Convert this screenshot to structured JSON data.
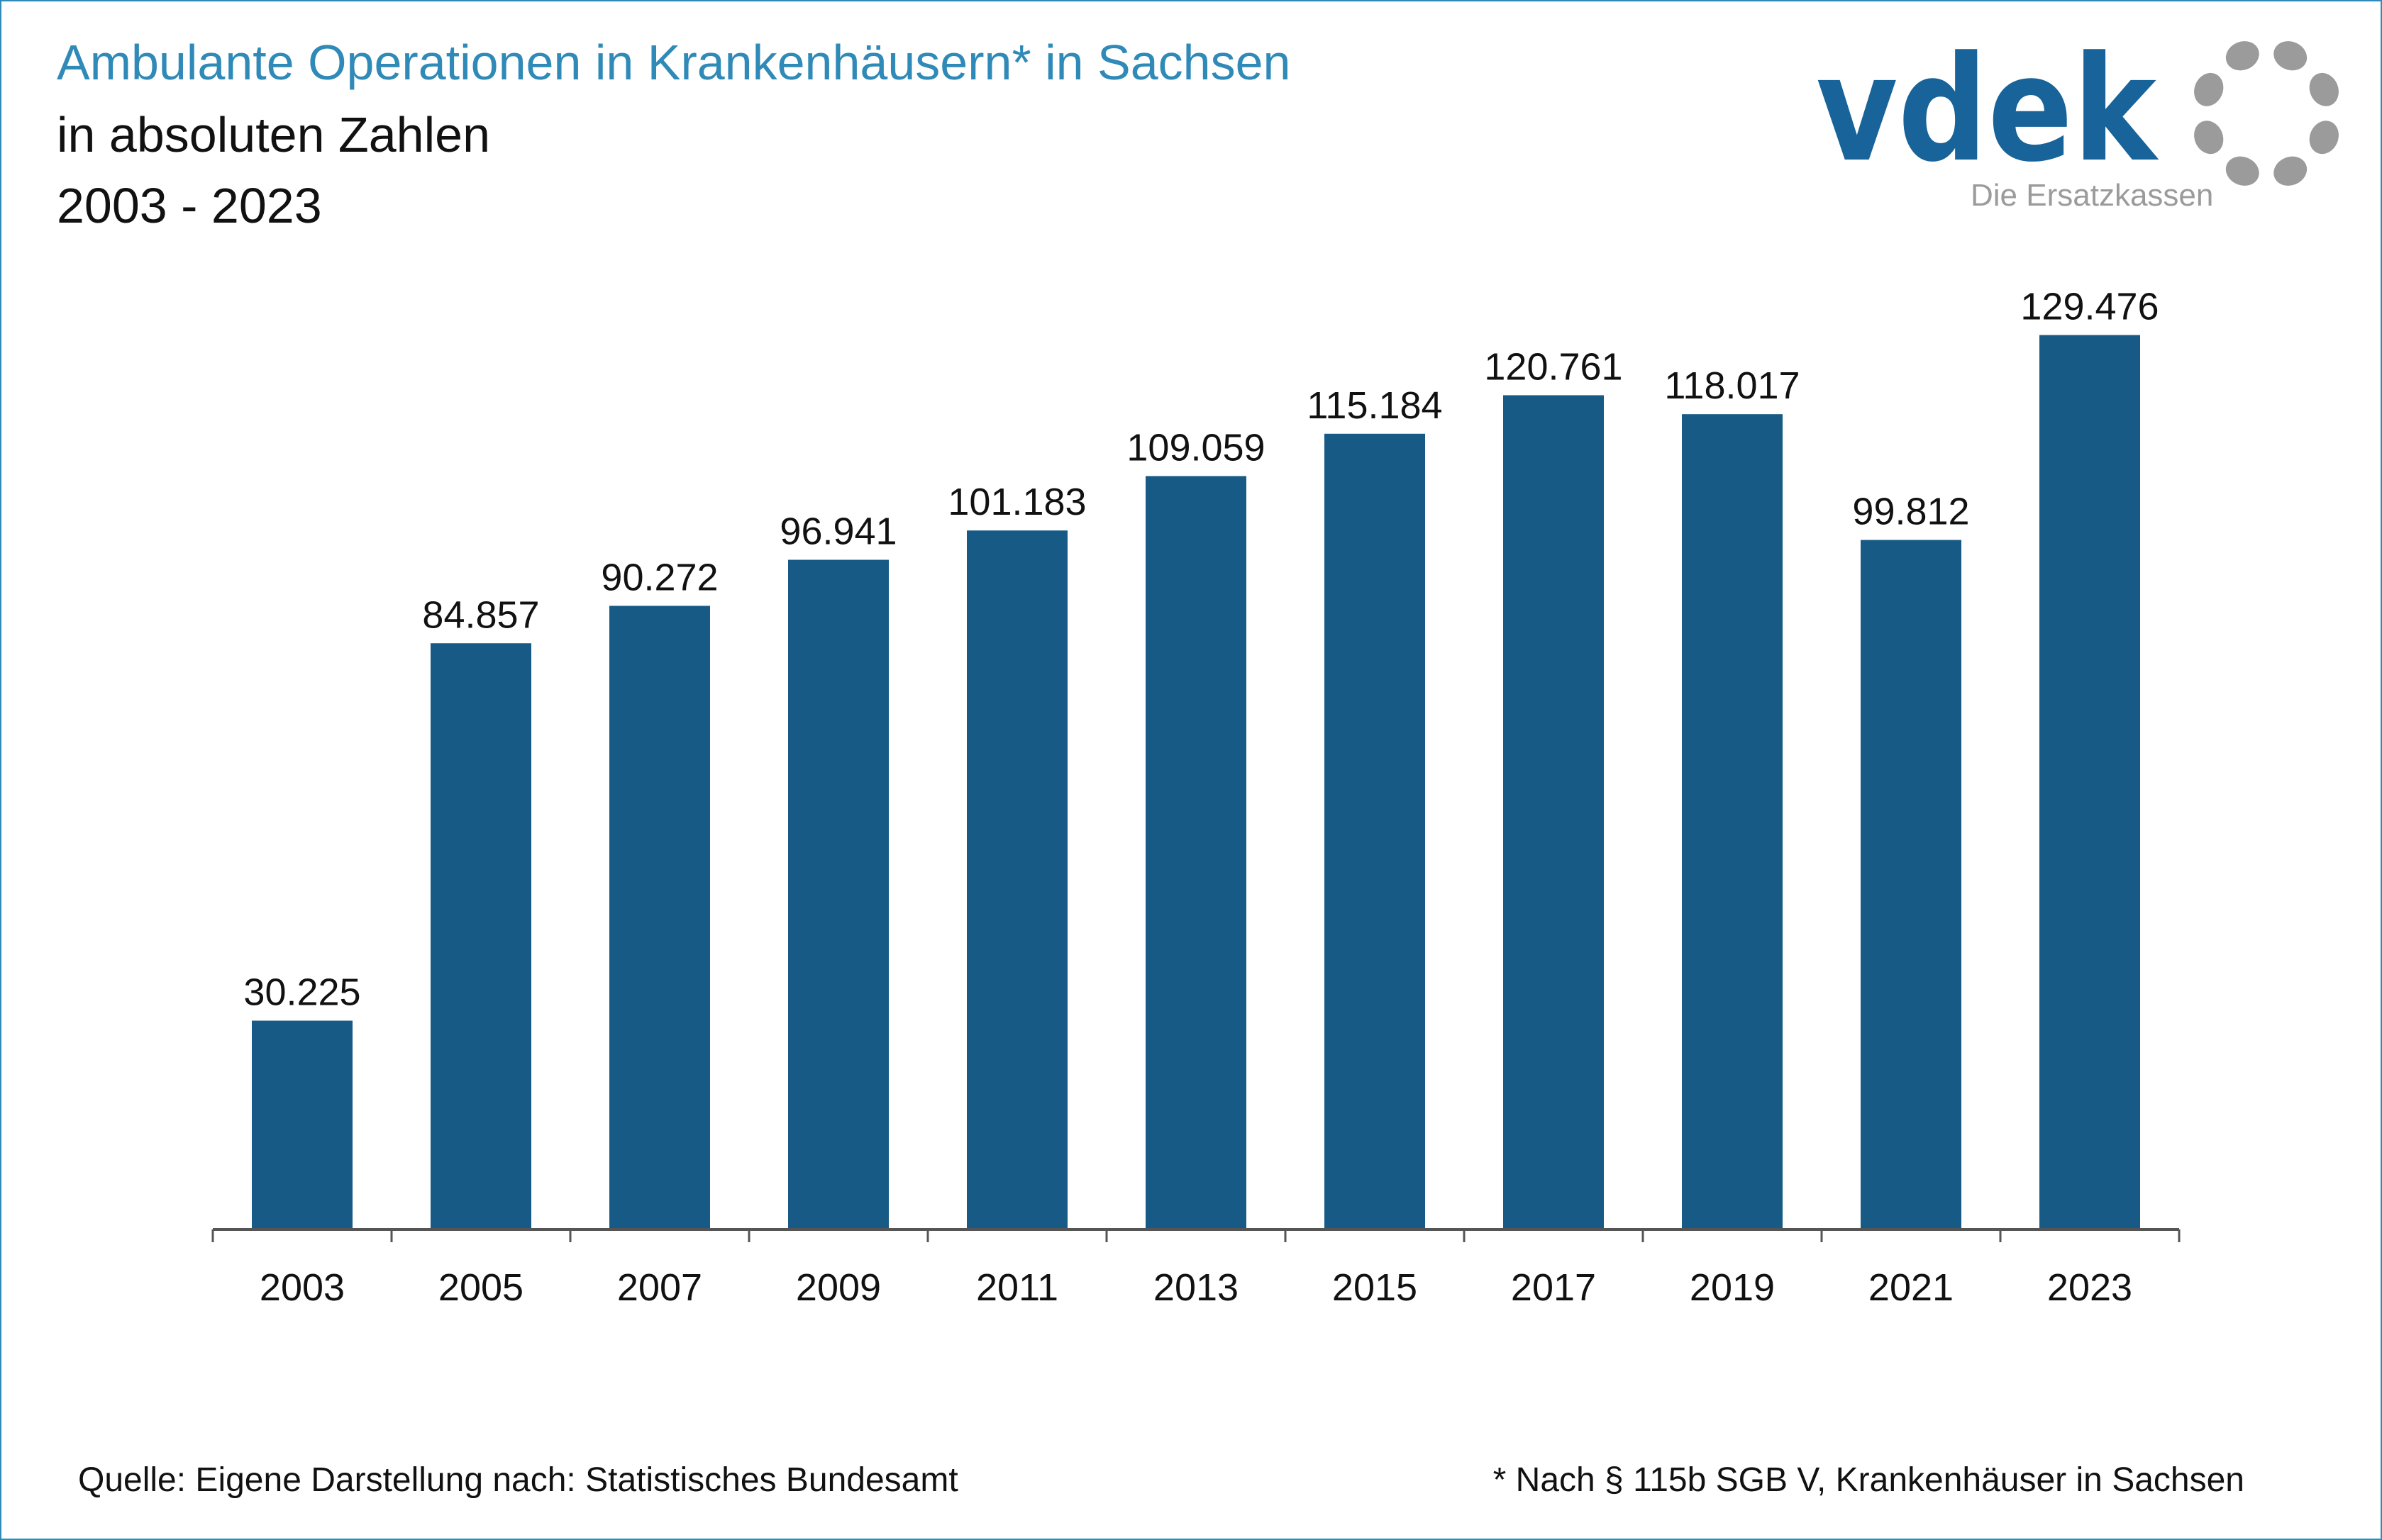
{
  "title": "Ambulante Operationen in Krankenhäusern* in Sachsen",
  "subtitle": "in absoluten Zahlen",
  "period": "2003 - 2023",
  "logo": {
    "wordmark": "vdek",
    "tagline": "Die Ersatzkassen",
    "icon": "circle-of-dots-icon"
  },
  "colors": {
    "bar": "#175a85",
    "title": "#2f8ab7",
    "logo_blue": "#17639a",
    "logo_gray": "#9b9b9b"
  },
  "chart_data": {
    "type": "bar",
    "categories": [
      "2003",
      "2005",
      "2007",
      "2009",
      "2011",
      "2013",
      "2015",
      "2017",
      "2019",
      "2021",
      "2023"
    ],
    "values": [
      30225,
      84857,
      90272,
      96941,
      101183,
      109059,
      115184,
      120761,
      118017,
      99812,
      129476
    ],
    "data_labels": [
      "30.225",
      "84.857",
      "90.272",
      "96.941",
      "101.183",
      "109.059",
      "115.184",
      "120.761",
      "118.017",
      "99.812",
      "129.476"
    ],
    "ylim": [
      0,
      140000
    ],
    "grid": false,
    "legend": "none"
  },
  "source": "Quelle: Eigene Darstellung nach: Statistisches Bundesamt",
  "footnote": "* Nach § 115b SGB V, Krankenhäuser in Sachsen"
}
